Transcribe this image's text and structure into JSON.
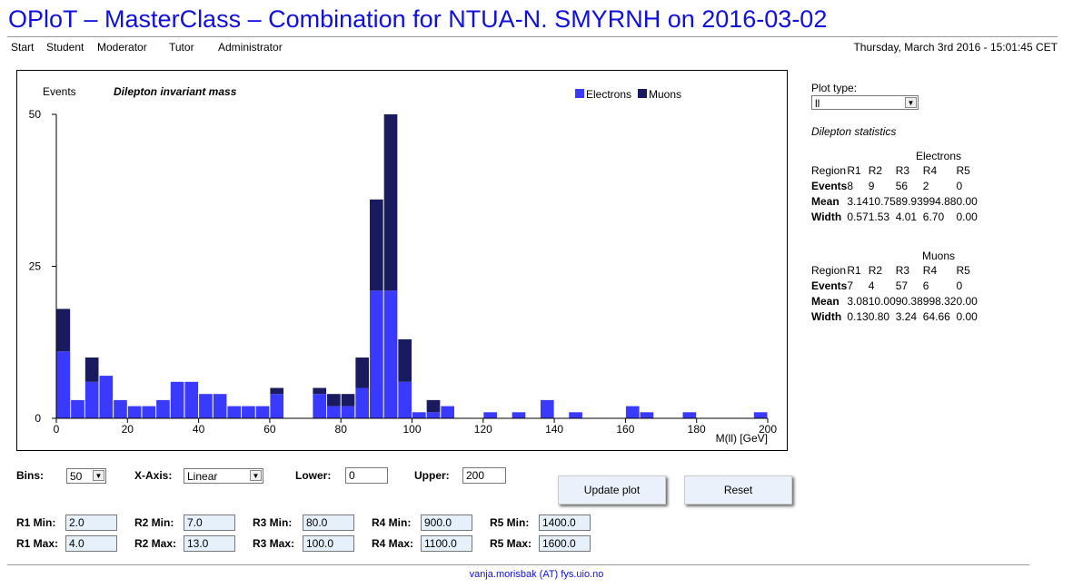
{
  "title": "OPloT – MasterClass – Combination for NTUA-N. SMYRNH on 2016-03-02",
  "nav": [
    "Start",
    "Student",
    "Moderator",
    "Tutor",
    "Administrator"
  ],
  "datetime": "Thursday, March 3rd 2016 - 15:01:45 CET",
  "chart_data": {
    "type": "bar",
    "stacked": true,
    "title": "Dilepton invariant mass",
    "ylabel": "Events",
    "xlabel": "M(ll) [GeV]",
    "xlim": [
      0,
      200
    ],
    "ylim": [
      0,
      50
    ],
    "xticks": [
      0,
      20,
      40,
      60,
      80,
      100,
      120,
      140,
      160,
      180,
      200
    ],
    "yticks": [
      0,
      25,
      50
    ],
    "bin_width": 4,
    "bin_starts": [
      0,
      4,
      8,
      12,
      16,
      20,
      24,
      28,
      32,
      36,
      40,
      44,
      48,
      52,
      56,
      60,
      64,
      68,
      72,
      76,
      80,
      84,
      88,
      92,
      96,
      100,
      104,
      108,
      112,
      116,
      120,
      124,
      128,
      132,
      136,
      140,
      144,
      148,
      152,
      156,
      160,
      164,
      168,
      172,
      176,
      180,
      184,
      188,
      192,
      196
    ],
    "legend": "top-right",
    "series": [
      {
        "name": "Electrons",
        "color": "#3a3aff",
        "values": [
          11,
          3,
          6,
          7,
          3,
          2,
          2,
          3,
          6,
          6,
          4,
          4,
          2,
          2,
          2,
          4,
          0,
          0,
          4,
          2,
          2,
          5,
          21,
          21,
          6,
          1,
          1,
          2,
          0,
          0,
          1,
          0,
          1,
          0,
          3,
          0,
          1,
          0,
          0,
          0,
          2,
          1,
          0,
          0,
          1,
          0,
          0,
          0,
          0,
          1
        ]
      },
      {
        "name": "Muons",
        "color": "#1a1a5e",
        "values": [
          7,
          0,
          4,
          0,
          0,
          0,
          0,
          0,
          0,
          0,
          0,
          0,
          0,
          0,
          0,
          1,
          0,
          0,
          1,
          2,
          2,
          5,
          15,
          29,
          7,
          0,
          2,
          0,
          0,
          0,
          0,
          0,
          0,
          0,
          0,
          0,
          0,
          0,
          0,
          0,
          0,
          0,
          0,
          0,
          0,
          0,
          0,
          0,
          0,
          0
        ]
      }
    ]
  },
  "side": {
    "plot_type_label": "Plot type:",
    "plot_type_value": "ll",
    "stats_title": "Dilepton statistics",
    "columns": [
      "Region",
      "R1",
      "R2",
      "R3",
      "R4",
      "R5"
    ],
    "electrons": {
      "title": "Electrons",
      "rows": [
        {
          "label": "Events",
          "vals": [
            "8",
            "9",
            "56",
            "2",
            "0"
          ]
        },
        {
          "label": "Mean",
          "vals": [
            "3.14",
            "10.75",
            "89.93",
            "994.88",
            "0.00"
          ]
        },
        {
          "label": "Width",
          "vals": [
            "0.57",
            "1.53",
            "4.01",
            "6.70",
            "0.00"
          ]
        }
      ]
    },
    "muons": {
      "title": "Muons",
      "rows": [
        {
          "label": "Events",
          "vals": [
            "7",
            "4",
            "57",
            "6",
            "0"
          ]
        },
        {
          "label": "Mean",
          "vals": [
            "3.08",
            "10.00",
            "90.38",
            "998.32",
            "0.00"
          ]
        },
        {
          "label": "Width",
          "vals": [
            "0.13",
            "0.80",
            "3.24",
            "64.66",
            "0.00"
          ]
        }
      ]
    }
  },
  "controls": {
    "bins_label": "Bins:",
    "bins_value": "50",
    "xaxis_label": "X-Axis:",
    "xaxis_value": "Linear",
    "lower_label": "Lower:",
    "lower_value": "0",
    "upper_label": "Upper:",
    "upper_value": "200",
    "update_button": "Update plot",
    "reset_button": "Reset",
    "regions": [
      {
        "min_label": "R1 Min:",
        "min": "2.0",
        "max_label": "R1 Max:",
        "max": "4.0"
      },
      {
        "min_label": "R2 Min:",
        "min": "7.0",
        "max_label": "R2 Max:",
        "max": "13.0"
      },
      {
        "min_label": "R3 Min:",
        "min": "80.0",
        "max_label": "R3 Max:",
        "max": "100.0"
      },
      {
        "min_label": "R4 Min:",
        "min": "900.0",
        "max_label": "R4 Max:",
        "max": "1100.0"
      },
      {
        "min_label": "R5 Min:",
        "min": "1400.0",
        "max_label": "R5 Max:",
        "max": "1600.0"
      }
    ]
  },
  "footer": "vanja.morisbak (AT) fys.uio.no"
}
